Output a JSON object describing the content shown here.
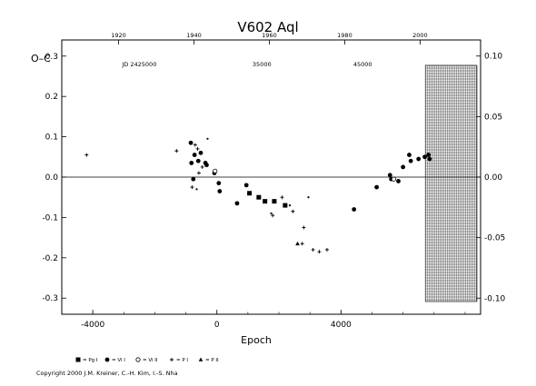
{
  "chart_data": {
    "type": "scatter",
    "title": "V602  Aql",
    "ylabel": "O–C",
    "xlabel": "Epoch",
    "xlim": [
      -5000,
      8500
    ],
    "ylim": [
      -0.34,
      0.34
    ],
    "y2lim": [
      -0.1133,
      0.1133
    ],
    "x_ticks": [
      "-4000",
      "0",
      "4000"
    ],
    "x_tick_values": [
      -4000,
      0,
      4000
    ],
    "y_ticks": [
      "0.3",
      "0.2",
      "0.1",
      "0.0",
      "-0.1",
      "-0.2",
      "-0.3"
    ],
    "y_tick_values": [
      0.3,
      0.2,
      0.1,
      0.0,
      -0.1,
      -0.2,
      -0.3
    ],
    "y2_ticks": [
      "0.10",
      "0.05",
      "0.00",
      "-0.05",
      "-0.10"
    ],
    "y2_tick_values": [
      0.1,
      0.05,
      0.0,
      -0.05,
      -0.1
    ],
    "top_year_ticks": [
      "1920",
      "1940",
      "1960",
      "1980",
      "2000"
    ],
    "top_year_epochs": [
      -3170,
      -740,
      1690,
      4120,
      6550
    ],
    "jd_labels": [
      "JD 2425000",
      "35000",
      "45000"
    ],
    "jd_label_epochs": [
      -2500,
      1450,
      4700
    ],
    "shaded_from_epoch": 6720,
    "series": [
      {
        "symbol": "square",
        "points": [
          [
            1050,
            -0.04
          ],
          [
            1350,
            -0.05
          ],
          [
            1550,
            -0.06
          ],
          [
            1850,
            -0.06
          ],
          [
            2200,
            -0.07
          ]
        ]
      },
      {
        "symbol": "circle",
        "points": [
          [
            -840,
            0.085
          ],
          [
            -820,
            0.035
          ],
          [
            -760,
            -0.005
          ],
          [
            -720,
            0.055
          ],
          [
            -600,
            0.04
          ],
          [
            -520,
            0.06
          ],
          [
            -370,
            0.035
          ],
          [
            -330,
            0.03
          ],
          [
            -80,
            0.01
          ],
          [
            60,
            -0.015
          ],
          [
            90,
            -0.035
          ],
          [
            650,
            -0.065
          ],
          [
            950,
            -0.02
          ],
          [
            4420,
            -0.08
          ],
          [
            5150,
            -0.025
          ],
          [
            5580,
            0.005
          ],
          [
            5620,
            -0.005
          ],
          [
            5850,
            -0.01
          ],
          [
            6000,
            0.025
          ],
          [
            6200,
            0.055
          ],
          [
            6250,
            0.04
          ],
          [
            6500,
            0.045
          ],
          [
            6700,
            0.05
          ],
          [
            6820,
            0.055
          ],
          [
            6860,
            0.045
          ]
        ]
      },
      {
        "symbol": "open-circle",
        "points": [
          [
            -60,
            0.015
          ],
          [
            5700,
            -0.005
          ]
        ]
      },
      {
        "symbol": "plus",
        "points": [
          [
            -4200,
            0.055
          ],
          [
            -1300,
            0.065
          ],
          [
            -800,
            -0.025
          ],
          [
            -700,
            0.08
          ],
          [
            -620,
            0.07
          ],
          [
            -580,
            0.01
          ],
          [
            -470,
            0.025
          ],
          [
            1800,
            -0.095
          ],
          [
            2100,
            -0.05
          ],
          [
            2450,
            -0.085
          ],
          [
            2750,
            -0.165
          ],
          [
            2800,
            -0.125
          ],
          [
            3100,
            -0.18
          ],
          [
            3300,
            -0.185
          ],
          [
            3550,
            -0.18
          ]
        ]
      },
      {
        "symbol": "triangle",
        "points": [
          [
            2600,
            -0.165
          ]
        ]
      },
      {
        "symbol": "dot",
        "points": [
          [
            -300,
            0.095
          ],
          [
            -650,
            -0.03
          ],
          [
            1750,
            -0.09
          ],
          [
            2350,
            -0.07
          ],
          [
            2950,
            -0.05
          ]
        ]
      }
    ],
    "legend": [
      "= Pg I",
      "= Vi I",
      "= Vi II",
      "= P I",
      "= P II"
    ],
    "grid": false
  },
  "footer": {
    "copyright": "Copyright 2000 J.M. Kreiner, C.-H. Kim, I.-S. Nha"
  }
}
